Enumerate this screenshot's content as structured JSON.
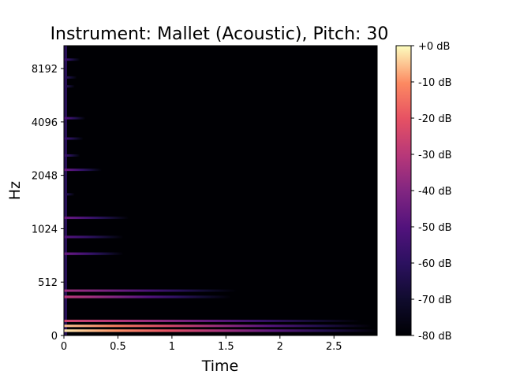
{
  "chart_data": {
    "type": "heatmap",
    "title": "Instrument: Mallet (Acoustic), Pitch: 30",
    "xlabel": "Time",
    "ylabel": "Hz",
    "y_scale": "symlog",
    "xlim": [
      0,
      2.9
    ],
    "ylim": [
      0,
      11025
    ],
    "x_ticks": [
      0,
      0.5,
      1,
      1.5,
      2,
      2.5
    ],
    "x_tick_labels": [
      "0",
      "0.5",
      "1",
      "1.5",
      "2",
      "2.5"
    ],
    "y_ticks": [
      0,
      512,
      1024,
      2048,
      4096,
      8192
    ],
    "y_tick_labels": [
      "0",
      "512",
      "1024",
      "2048",
      "4096",
      "8192"
    ],
    "colormap": "magma",
    "colorbar": {
      "range_db": [
        -80,
        0
      ],
      "ticks": [
        0,
        -10,
        -20,
        -30,
        -40,
        -50,
        -60,
        -70,
        -80
      ],
      "tick_labels": [
        "+0 dB",
        "-10 dB",
        "-20 dB",
        "-30 dB",
        "-40 dB",
        "-50 dB",
        "-60 dB",
        "-70 dB",
        "-80 dB"
      ]
    },
    "background_db": -80,
    "harmonic_bands": [
      {
        "freq_hz": 46,
        "peak_db": -2,
        "decay_end_s": 2.9,
        "width_hz": 25
      },
      {
        "freq_hz": 92,
        "peak_db": -5,
        "decay_end_s": 2.85,
        "width_hz": 20
      },
      {
        "freq_hz": 140,
        "peak_db": -25,
        "decay_end_s": 2.75,
        "width_hz": 15
      },
      {
        "freq_hz": 370,
        "peak_db": -30,
        "decay_end_s": 1.55,
        "width_hz": 25
      },
      {
        "freq_hz": 430,
        "peak_db": -35,
        "decay_end_s": 1.6,
        "width_hz": 20
      },
      {
        "freq_hz": 740,
        "peak_db": -45,
        "decay_end_s": 0.55,
        "width_hz": 25
      },
      {
        "freq_hz": 920,
        "peak_db": -50,
        "decay_end_s": 0.55,
        "width_hz": 30
      },
      {
        "freq_hz": 1180,
        "peak_db": -45,
        "decay_end_s": 0.6,
        "width_hz": 35
      },
      {
        "freq_hz": 1600,
        "peak_db": -60,
        "decay_end_s": 0.1,
        "width_hz": 30
      },
      {
        "freq_hz": 2200,
        "peak_db": -45,
        "decay_end_s": 0.35,
        "width_hz": 60
      },
      {
        "freq_hz": 2650,
        "peak_db": -55,
        "decay_end_s": 0.15,
        "width_hz": 50
      },
      {
        "freq_hz": 3300,
        "peak_db": -55,
        "decay_end_s": 0.18,
        "width_hz": 60
      },
      {
        "freq_hz": 4300,
        "peak_db": -50,
        "decay_end_s": 0.2,
        "width_hz": 80
      },
      {
        "freq_hz": 6500,
        "peak_db": -60,
        "decay_end_s": 0.1,
        "width_hz": 100
      },
      {
        "freq_hz": 7300,
        "peak_db": -60,
        "decay_end_s": 0.12,
        "width_hz": 100
      },
      {
        "freq_hz": 9200,
        "peak_db": -55,
        "decay_end_s": 0.15,
        "width_hz": 120
      }
    ]
  }
}
